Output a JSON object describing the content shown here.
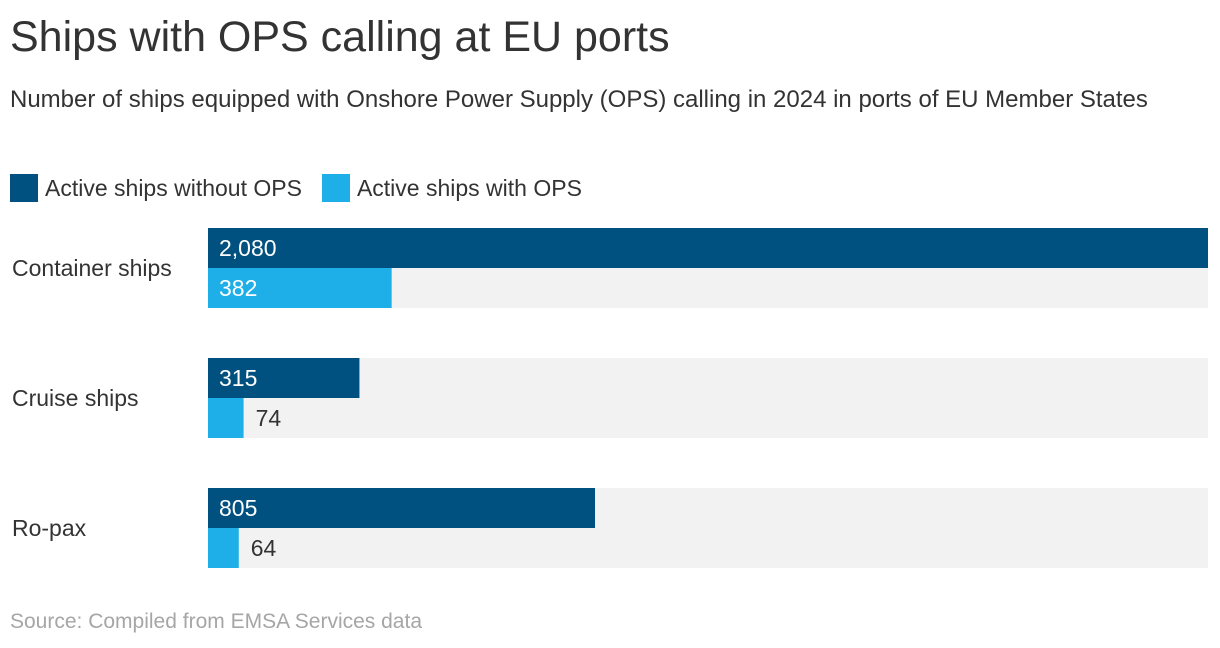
{
  "title": "Ships with OPS calling at EU ports",
  "subtitle": "Number of ships equipped with Onshore Power Supply (OPS) calling in 2024 in ports of EU Member States",
  "source": "Source: Compiled from EMSA Services data",
  "legend": [
    {
      "label": "Active ships without OPS",
      "color": "#00517f"
    },
    {
      "label": "Active ships with OPS",
      "color": "#1eaee8"
    }
  ],
  "colors": {
    "track": "#f2f2f2",
    "label_inside": "#ffffff",
    "label_outside": "#333333",
    "category_text": "#333333"
  },
  "chart_data": {
    "type": "bar",
    "orientation": "horizontal",
    "categories": [
      "Container ships",
      "Cruise ships",
      "Ro-pax"
    ],
    "series": [
      {
        "name": "Active ships without OPS",
        "values": [
          2080,
          315,
          805
        ],
        "labels": [
          "2,080",
          "315",
          "805"
        ]
      },
      {
        "name": "Active ships with OPS",
        "values": [
          382,
          74,
          64
        ],
        "labels": [
          "382",
          "74",
          "64"
        ]
      }
    ],
    "xlim": [
      0,
      2080
    ],
    "grid": false,
    "legend_position": "top-left"
  }
}
